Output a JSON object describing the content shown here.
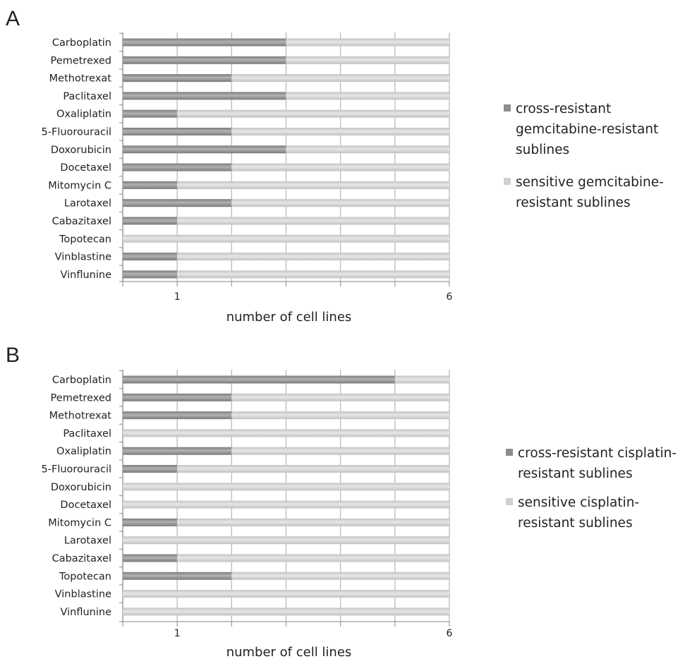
{
  "chart_data": [
    {
      "panel": "A",
      "type": "bar",
      "orientation": "horizontal",
      "stacked": true,
      "categories": [
        "Carboplatin",
        "Pemetrexed",
        "Methotrexat",
        "Paclitaxel",
        "Oxaliplatin",
        "5-Fluorouracil",
        "Doxorubicin",
        "Docetaxel",
        "Mitomycin C",
        "Larotaxel",
        "Cabazitaxel",
        "Topotecan",
        "Vinblastine",
        "Vinflunine"
      ],
      "series": [
        {
          "name": "cross-resistant gemcitabine-resistant sublines",
          "color": "#8f8f8f",
          "values": [
            3,
            3,
            2,
            3,
            1,
            2,
            3,
            2,
            1,
            2,
            1,
            0,
            1,
            1
          ]
        },
        {
          "name": "sensitive gemcitabine-resistant sublines",
          "color": "#d2d2d2",
          "values": [
            3,
            3,
            4,
            3,
            5,
            4,
            3,
            4,
            5,
            4,
            5,
            6,
            5,
            5
          ]
        }
      ],
      "xlabel": "number of cell lines",
      "xlim": [
        0,
        6
      ],
      "xticks": [
        0,
        1,
        2,
        3,
        4,
        5,
        6
      ],
      "xtick_labels": {
        "1": "1",
        "6": "6"
      },
      "legend_lines": [
        [
          "cross-resistant",
          "gemcitabine-resistant",
          "sublines"
        ],
        [
          "sensitive gemcitabine-",
          "resistant sublines"
        ]
      ],
      "grid": true,
      "legend_position": "right"
    },
    {
      "panel": "B",
      "type": "bar",
      "orientation": "horizontal",
      "stacked": true,
      "categories": [
        "Carboplatin",
        "Pemetrexed",
        "Methotrexat",
        "Paclitaxel",
        "Oxaliplatin",
        "5-Fluorouracil",
        "Doxorubicin",
        "Docetaxel",
        "Mitomycin C",
        "Larotaxel",
        "Cabazitaxel",
        "Topotecan",
        "Vinblastine",
        "Vinflunine"
      ],
      "series": [
        {
          "name": "cross-resistant cisplatin-resistant sublines",
          "color": "#8f8f8f",
          "values": [
            5,
            2,
            2,
            0,
            2,
            1,
            0,
            0,
            1,
            0,
            1,
            2,
            0,
            0
          ]
        },
        {
          "name": "sensitive cisplatin-resistant sublines",
          "color": "#d2d2d2",
          "values": [
            1,
            4,
            4,
            6,
            4,
            5,
            6,
            6,
            5,
            6,
            5,
            4,
            6,
            6
          ]
        }
      ],
      "xlabel": "number of cell lines",
      "xlim": [
        0,
        6
      ],
      "xticks": [
        0,
        1,
        2,
        3,
        4,
        5,
        6
      ],
      "xtick_labels": {
        "1": "1",
        "6": "6"
      },
      "legend_lines": [
        [
          "cross-resistant cisplatin-",
          "resistant sublines"
        ],
        [
          "sensitive cisplatin-",
          "resistant sublines"
        ]
      ],
      "grid": true,
      "legend_position": "right"
    }
  ]
}
